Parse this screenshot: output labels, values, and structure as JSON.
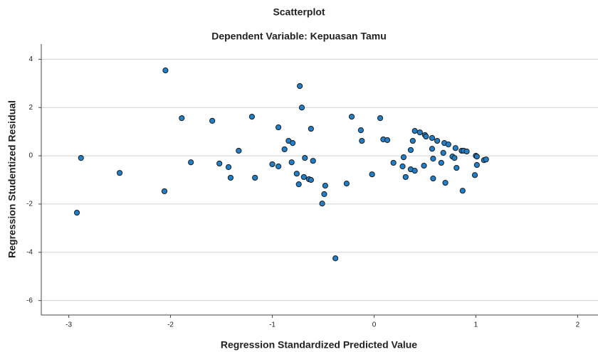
{
  "chart_data": {
    "type": "scatter",
    "title": "Scatterplot",
    "subtitle": "Dependent Variable: Kepuasan Tamu",
    "xlabel": "Regression Standardized Predicted Value",
    "ylabel": "Regression Studentized Residual",
    "color": "#1f7fc8",
    "x": [
      -2.92,
      -2.88,
      -2.5,
      -2.06,
      -2.05,
      -1.89,
      -1.8,
      -1.59,
      -1.52,
      -1.43,
      -1.41,
      -1.33,
      -1.2,
      -1.17,
      -1.0,
      -0.94,
      -0.94,
      -0.88,
      -0.84,
      -0.8,
      -0.81,
      -0.73,
      -0.71,
      -0.76,
      -0.68,
      -0.74,
      -0.69,
      -0.64,
      -0.62,
      -0.62,
      -0.6,
      -0.51,
      -0.49,
      -0.48,
      -0.38,
      -0.27,
      -0.22,
      -0.13,
      -0.12,
      -0.02,
      0.06,
      0.09,
      0.13,
      0.19,
      0.28,
      0.29,
      0.31,
      0.36,
      0.36,
      0.4,
      0.4,
      0.38,
      0.45,
      0.49,
      0.5,
      0.51,
      0.57,
      0.57,
      0.58,
      0.58,
      0.62,
      0.66,
      0.69,
      0.68,
      0.7,
      0.73,
      0.77,
      0.79,
      0.8,
      0.81,
      0.86,
      0.87,
      0.88,
      0.91,
      1.0,
      1.01,
      1.01,
      0.99,
      1.08,
      1.1
    ],
    "y": [
      -2.36,
      -0.09,
      -0.71,
      -1.47,
      3.54,
      1.56,
      -0.27,
      1.45,
      -0.32,
      -0.47,
      -0.91,
      0.21,
      1.62,
      -0.91,
      -0.35,
      -0.44,
      1.18,
      0.27,
      0.62,
      0.53,
      -0.27,
      2.89,
      2.0,
      -0.74,
      -0.09,
      -1.18,
      -0.88,
      -0.97,
      -1.0,
      1.12,
      -0.21,
      -1.98,
      -1.59,
      -1.24,
      -4.25,
      -1.15,
      1.62,
      1.06,
      0.62,
      -0.77,
      1.56,
      0.68,
      0.65,
      -0.29,
      -0.44,
      -0.06,
      -0.88,
      0.24,
      -0.56,
      1.03,
      -0.62,
      0.62,
      0.97,
      -0.41,
      0.86,
      0.8,
      0.74,
      0.29,
      -0.12,
      -0.94,
      0.62,
      -0.29,
      0.53,
      0.12,
      -1.12,
      0.47,
      -0.03,
      -0.09,
      0.32,
      -0.5,
      0.21,
      -1.45,
      0.21,
      0.18,
      0,
      -0.38,
      -0.03,
      -0.8,
      -0.18,
      -0.15
    ],
    "xlim": [
      -3.27,
      2.2
    ],
    "xticks": [
      -3,
      -2,
      -1,
      0,
      1,
      2
    ],
    "ylim": [
      -6.6,
      4.63
    ],
    "yticks": [
      -6,
      -4,
      -2,
      0,
      2,
      4
    ],
    "grid": true
  }
}
